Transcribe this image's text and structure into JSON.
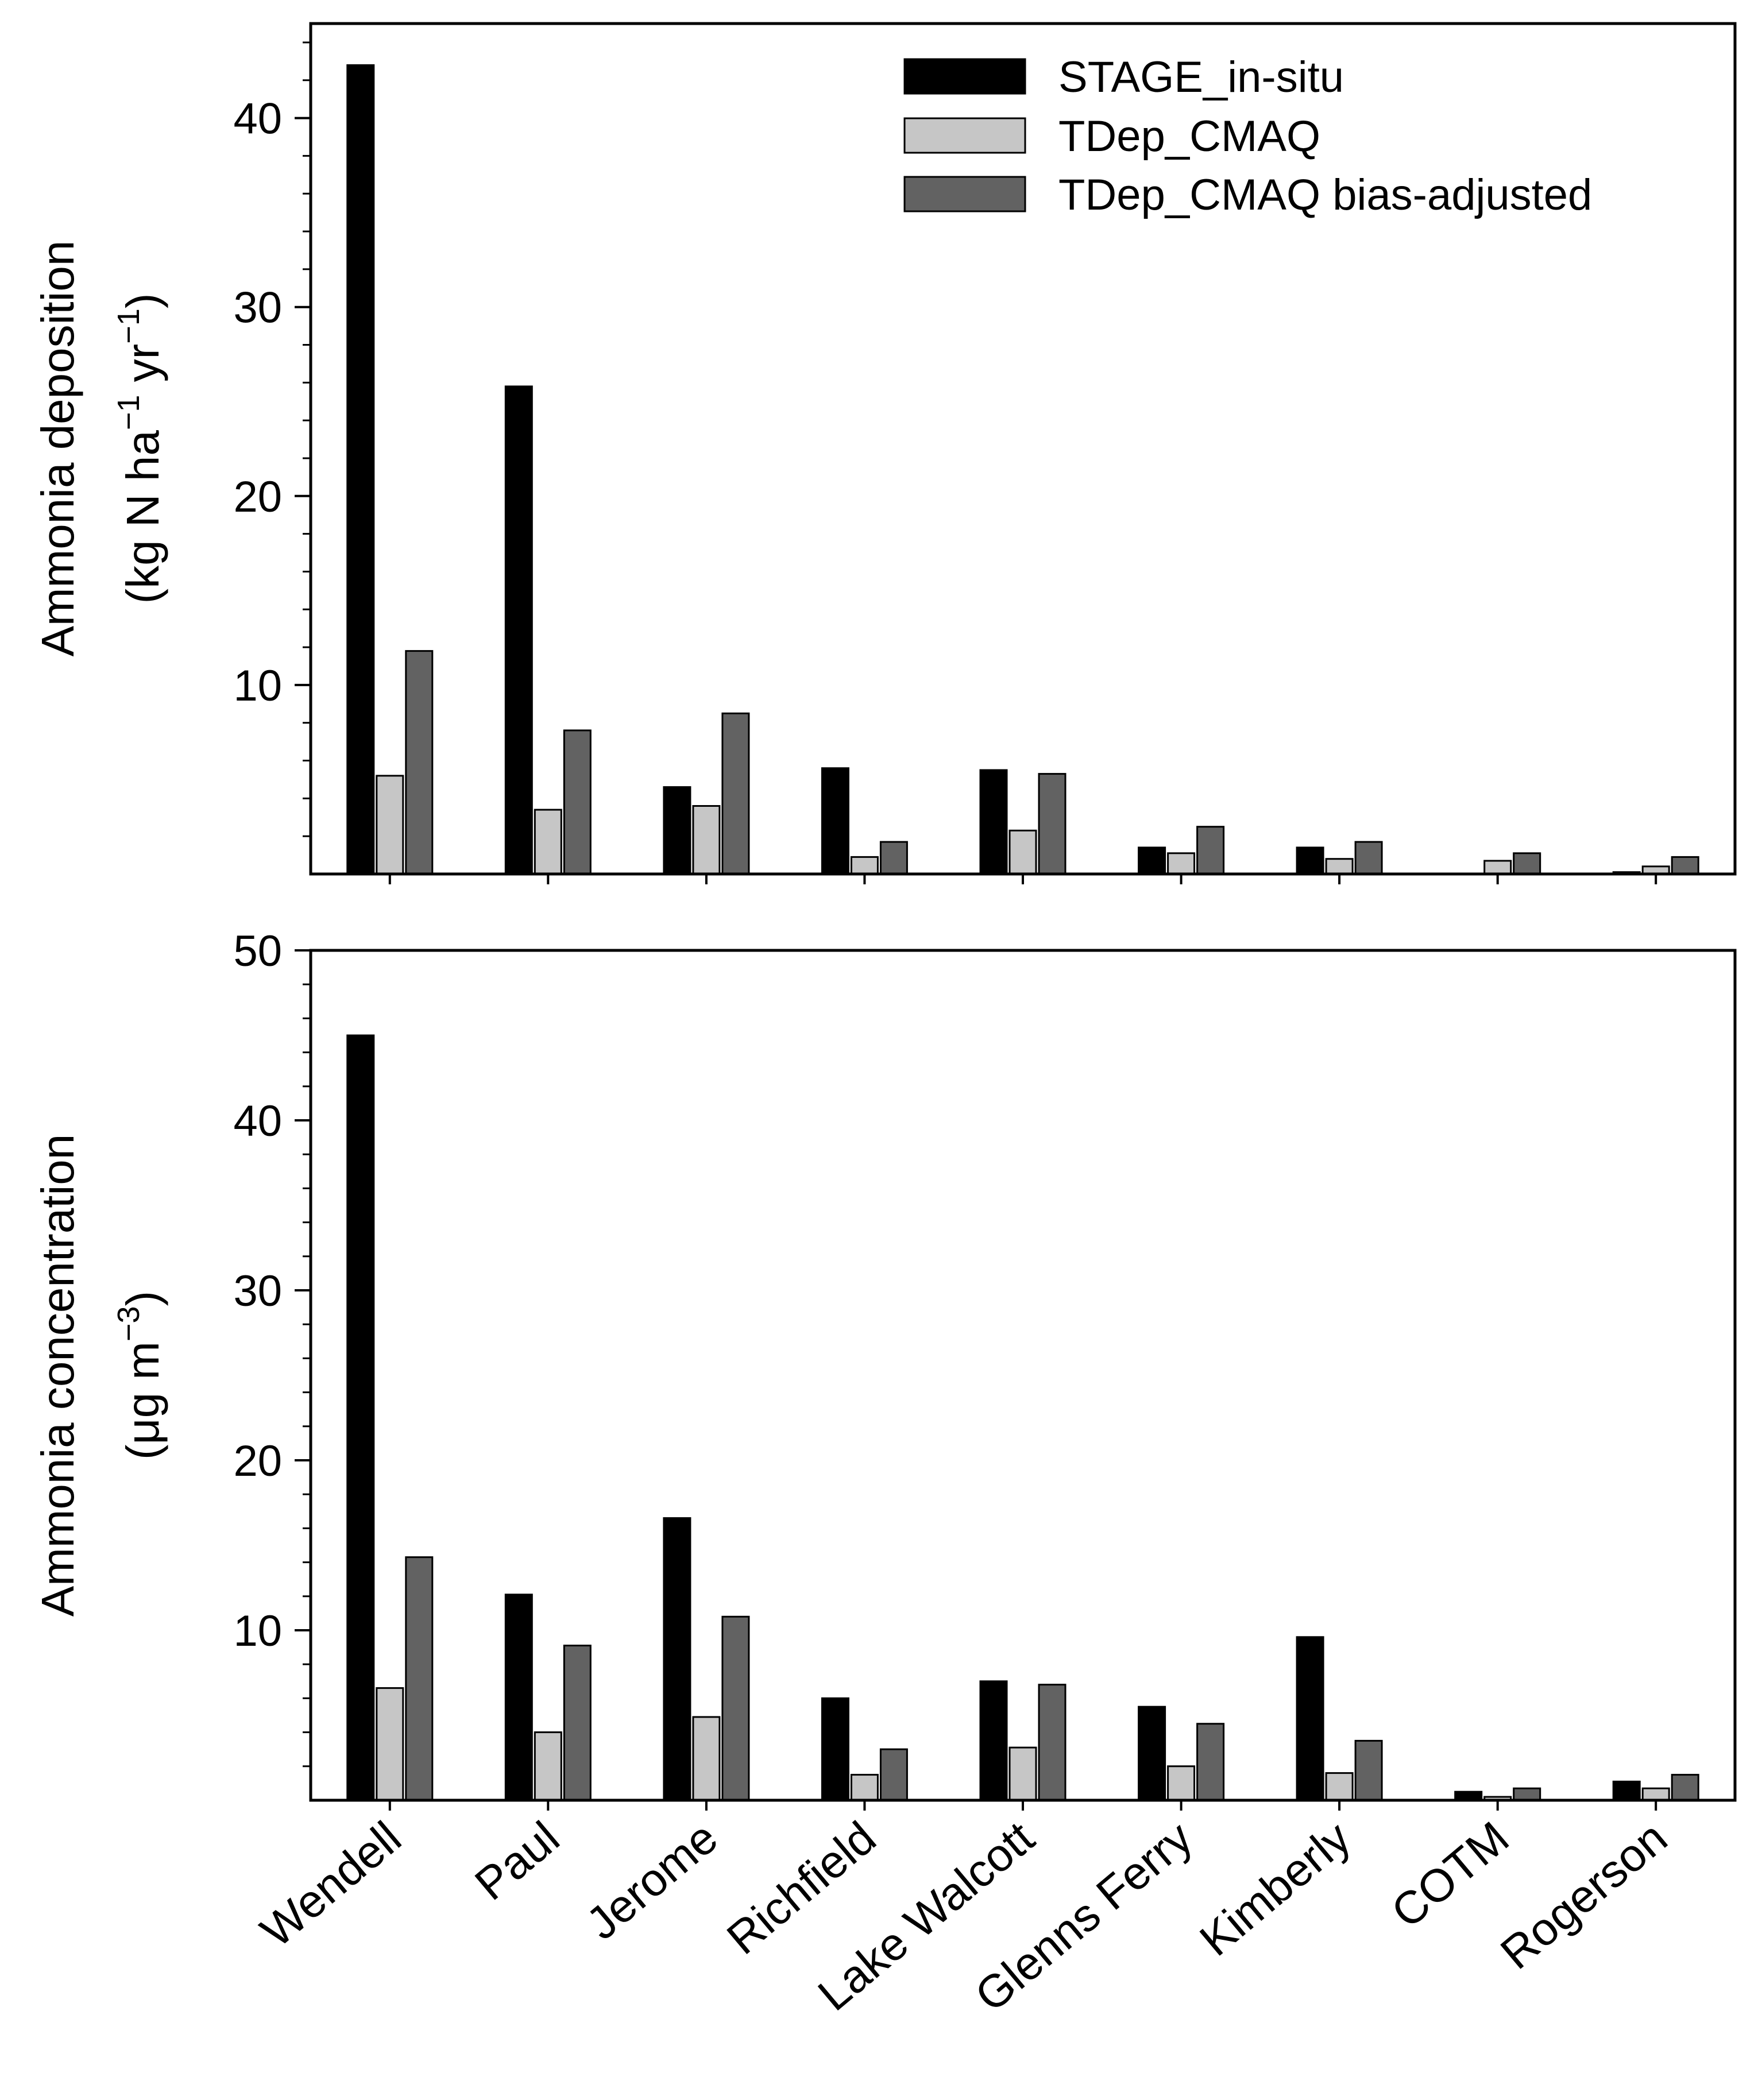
{
  "colors": {
    "stage": "#000000",
    "tdep": "#c6c6c6",
    "adjusted": "#626262",
    "axis": "#000000"
  },
  "categories": [
    "Wendell",
    "Paul",
    "Jerome",
    "Richfield",
    "Lake Walcott",
    "Glenns Ferry",
    "Kimberly",
    "COTM",
    "Rogerson"
  ],
  "legend": {
    "placement": "top-right",
    "items": [
      "STAGE_in-situ",
      "TDep_CMAQ",
      "TDep_CMAQ bias-adjusted"
    ]
  },
  "chart_data": [
    {
      "type": "bar",
      "panel": "top",
      "title": "",
      "xlabel": "",
      "ylabel_line1": "Ammonia deposition",
      "ylabel_line2_parts": [
        "(kg N ha",
        "−1",
        " yr",
        "−1",
        ")"
      ],
      "ylim": [
        0,
        45
      ],
      "yticks": [
        10,
        20,
        30,
        40
      ],
      "yticks_label": [
        "10",
        "20",
        "30",
        "40"
      ],
      "categories": [
        "Wendell",
        "Paul",
        "Jerome",
        "Richfield",
        "Lake Walcott",
        "Glenns Ferry",
        "Kimberly",
        "COTM",
        "Rogerson"
      ],
      "series": [
        {
          "name": "STAGE_in-situ",
          "values": [
            42.8,
            25.8,
            4.6,
            5.6,
            5.5,
            1.4,
            1.4,
            null,
            0.1
          ]
        },
        {
          "name": "TDep_CMAQ",
          "values": [
            5.2,
            3.4,
            3.6,
            0.9,
            2.3,
            1.1,
            0.8,
            0.7,
            0.4
          ]
        },
        {
          "name": "TDep_CMAQ bias-adjusted",
          "values": [
            11.8,
            7.6,
            8.5,
            1.7,
            5.3,
            2.5,
            1.7,
            1.1,
            0.9
          ]
        }
      ]
    },
    {
      "type": "bar",
      "panel": "bottom",
      "title": "",
      "xlabel": "",
      "ylabel_line1": "Ammonia concentration",
      "ylabel_line2_parts": [
        "(μg m",
        "−3",
        ")"
      ],
      "ylim": [
        0,
        50
      ],
      "yticks": [
        10,
        20,
        30,
        40,
        50
      ],
      "yticks_label": [
        "10",
        "20",
        "30",
        "40",
        "50"
      ],
      "categories": [
        "Wendell",
        "Paul",
        "Jerome",
        "Richfield",
        "Lake Walcott",
        "Glenns Ferry",
        "Kimberly",
        "COTM",
        "Rogerson"
      ],
      "series": [
        {
          "name": "STAGE_in-situ",
          "values": [
            45.0,
            12.1,
            16.6,
            6.0,
            7.0,
            5.5,
            9.6,
            0.5,
            1.1
          ]
        },
        {
          "name": "TDep_CMAQ",
          "values": [
            6.6,
            4.0,
            4.9,
            1.5,
            3.1,
            2.0,
            1.6,
            0.2,
            0.7
          ]
        },
        {
          "name": "TDep_CMAQ bias-adjusted",
          "values": [
            14.3,
            9.1,
            10.8,
            3.0,
            6.8,
            4.5,
            3.5,
            0.7,
            1.5
          ]
        }
      ]
    }
  ]
}
